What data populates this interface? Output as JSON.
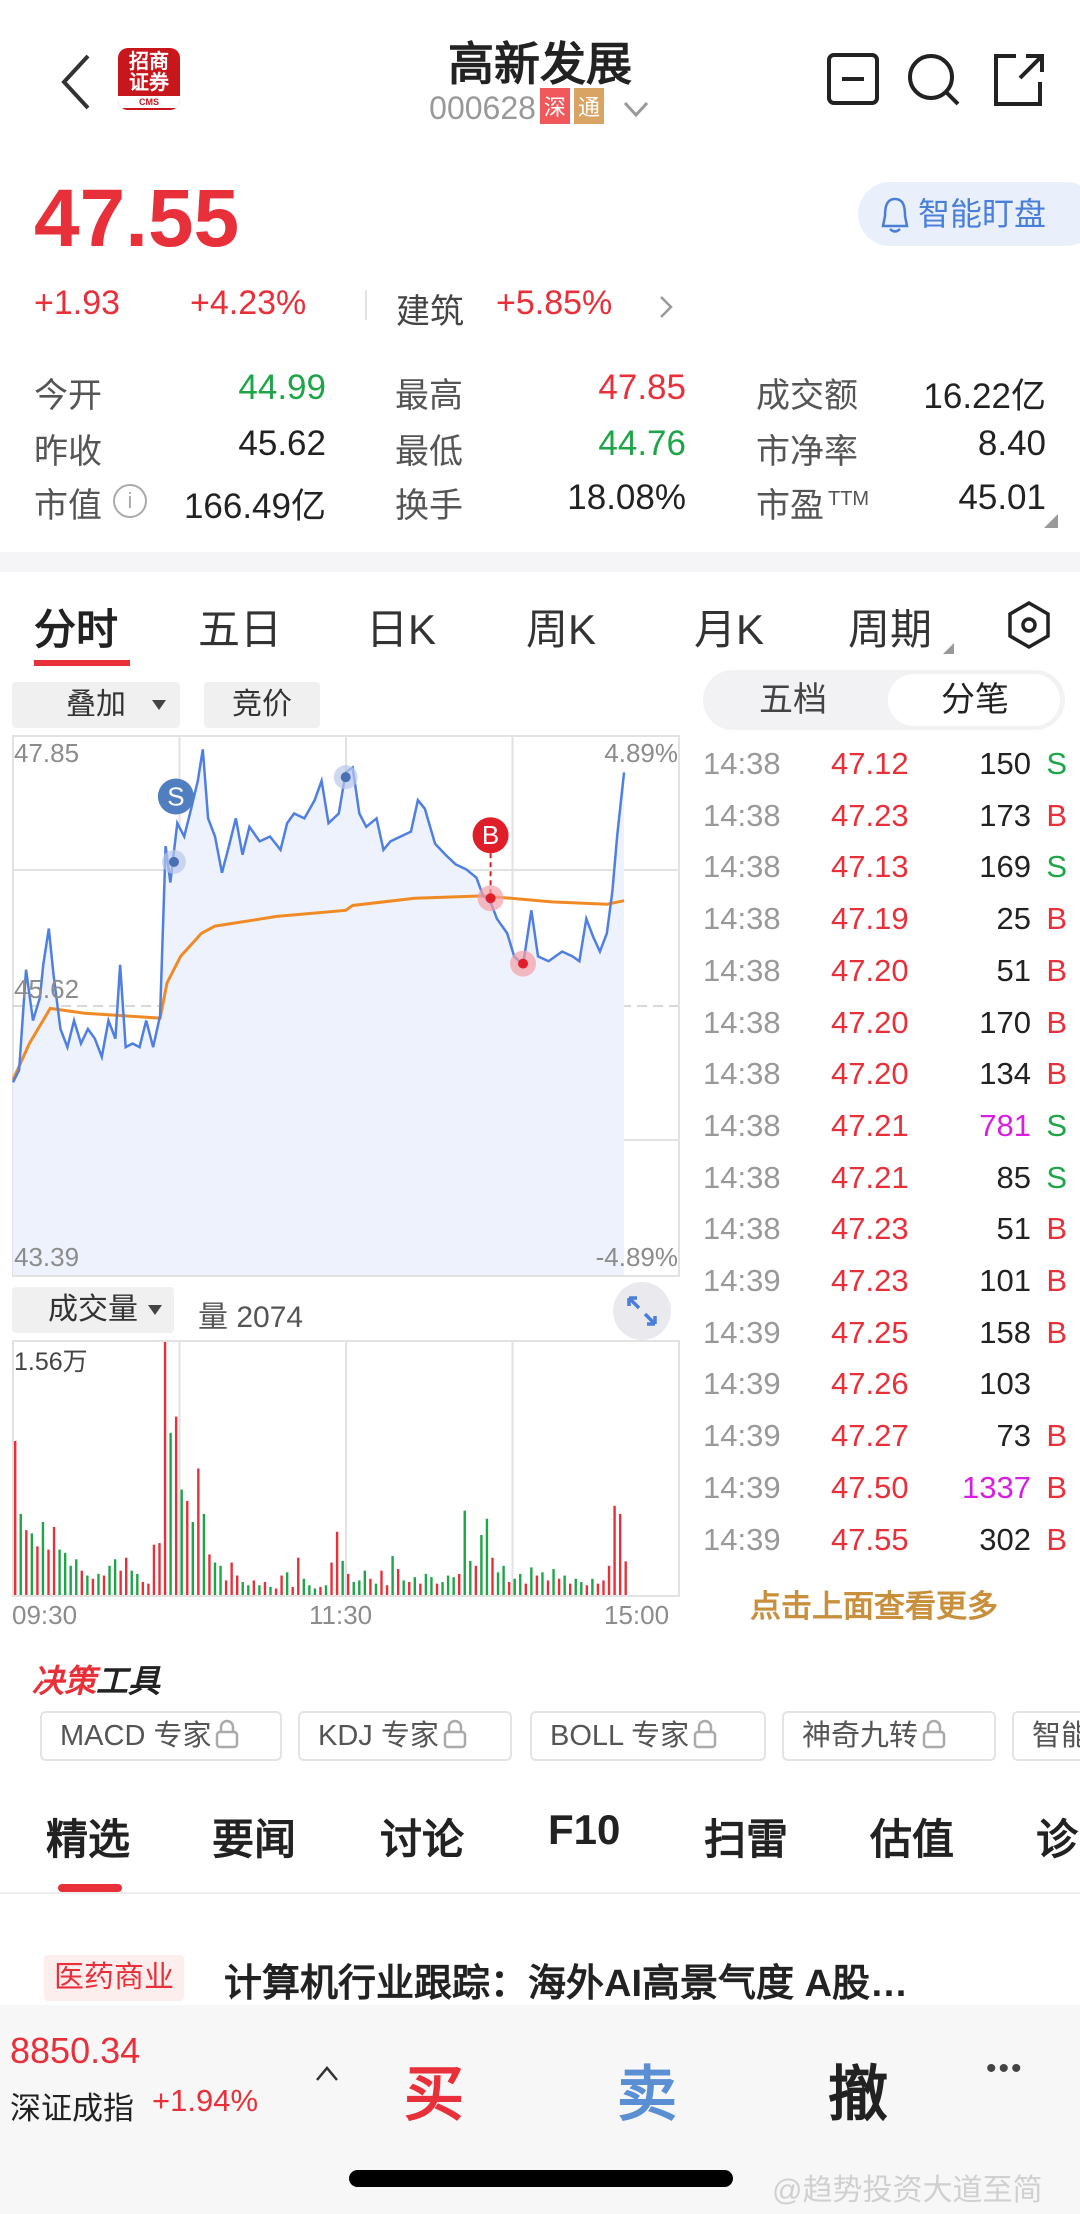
{
  "header": {
    "title": "高新发展",
    "code": "000628",
    "badges": [
      "深",
      "通"
    ],
    "logo_text": "招商证券",
    "logo_sub": "CMS"
  },
  "quote": {
    "price": "47.55",
    "change": "+1.93",
    "change_pct": "+4.23%",
    "sector": "建筑",
    "sector_pct": "+5.85%",
    "smart_watch": "智能盯盘"
  },
  "stats": [
    [
      {
        "label": "今开",
        "value": "44.99",
        "color": "green"
      },
      {
        "label": "最高",
        "value": "47.85",
        "color": "red"
      },
      {
        "label": "成交额",
        "value": "16.22亿",
        "color": "dark"
      }
    ],
    [
      {
        "label": "昨收",
        "value": "45.62",
        "color": "dark"
      },
      {
        "label": "最低",
        "value": "44.76",
        "color": "green"
      },
      {
        "label": "市净率",
        "value": "8.40",
        "color": "dark"
      }
    ],
    [
      {
        "label": "市值",
        "value": "166.49亿",
        "color": "dark"
      },
      {
        "label": "换手",
        "value": "18.08%",
        "color": "dark"
      },
      {
        "label": "市盈",
        "sup": "TTM",
        "value": "45.01",
        "color": "dark"
      }
    ]
  ],
  "chart_tabs": [
    "分时",
    "五日",
    "日K",
    "周K",
    "月K",
    "周期"
  ],
  "overlay": {
    "overlay_label": "叠加",
    "auction_label": "竞价",
    "volume_label": "成交量",
    "volume_value": "量 2074"
  },
  "side_tabs": [
    "五档",
    "分笔"
  ],
  "trades": [
    [
      "14:38",
      "47.12",
      "150",
      "S",
      false
    ],
    [
      "14:38",
      "47.23",
      "173",
      "B",
      false
    ],
    [
      "14:38",
      "47.13",
      "169",
      "S",
      false
    ],
    [
      "14:38",
      "47.19",
      "25",
      "B",
      false
    ],
    [
      "14:38",
      "47.20",
      "51",
      "B",
      false
    ],
    [
      "14:38",
      "47.20",
      "170",
      "B",
      false
    ],
    [
      "14:38",
      "47.20",
      "134",
      "B",
      false
    ],
    [
      "14:38",
      "47.21",
      "781",
      "S",
      true
    ],
    [
      "14:38",
      "47.21",
      "85",
      "S",
      false
    ],
    [
      "14:38",
      "47.23",
      "51",
      "B",
      false
    ],
    [
      "14:39",
      "47.23",
      "101",
      "B",
      false
    ],
    [
      "14:39",
      "47.25",
      "158",
      "B",
      false
    ],
    [
      "14:39",
      "47.26",
      "103",
      "",
      false
    ],
    [
      "14:39",
      "47.27",
      "73",
      "B",
      false
    ],
    [
      "14:39",
      "47.50",
      "1337",
      "B",
      true
    ],
    [
      "14:39",
      "47.55",
      "302",
      "B",
      false
    ]
  ],
  "more_link": "点击上面查看更多",
  "colors": {
    "up": "#e8303a",
    "down": "#1ea548",
    "price_line": "#4f7fe0",
    "avg_line": "#f08a24",
    "big_order": "#d81ee0",
    "accent": "#4a7fd9"
  },
  "chart_data": {
    "type": "line",
    "y_labels": {
      "top": "47.85",
      "mid": "45.62",
      "bottom": "43.39",
      "top_pct": "4.89%",
      "bottom_pct": "-4.89%"
    },
    "ylim": [
      43.39,
      47.85
    ],
    "prev_close": 45.62,
    "x_ticks": [
      "09:30",
      "11:30",
      "15:00"
    ],
    "x_range_minutes": [
      0,
      240
    ],
    "price": [
      [
        0,
        44.99
      ],
      [
        2.2,
        45.09
      ],
      [
        4.7,
        45.92
      ],
      [
        7.2,
        45.5
      ],
      [
        9.7,
        45.69
      ],
      [
        10.9,
        45.96
      ],
      [
        12.9,
        46.26
      ],
      [
        14.6,
        45.88
      ],
      [
        17.1,
        45.43
      ],
      [
        19.6,
        45.28
      ],
      [
        22,
        45.5
      ],
      [
        24.5,
        45.31
      ],
      [
        27,
        45.43
      ],
      [
        29.5,
        45.35
      ],
      [
        32,
        45.2
      ],
      [
        34.4,
        45.5
      ],
      [
        36.9,
        45.35
      ],
      [
        38.6,
        45.96
      ],
      [
        40.6,
        45.28
      ],
      [
        43.1,
        45.31
      ],
      [
        45.6,
        45.28
      ],
      [
        48,
        45.5
      ],
      [
        50.5,
        45.28
      ],
      [
        53,
        45.54
      ],
      [
        55,
        46.94
      ],
      [
        56.7,
        46.64
      ],
      [
        59.2,
        47.13
      ],
      [
        61.7,
        47.02
      ],
      [
        64.2,
        47.25
      ],
      [
        66.6,
        47.48
      ],
      [
        68.4,
        47.74
      ],
      [
        70.3,
        47.17
      ],
      [
        72.8,
        47.02
      ],
      [
        75.3,
        46.72
      ],
      [
        77.8,
        46.94
      ],
      [
        80.3,
        47.17
      ],
      [
        82.7,
        46.87
      ],
      [
        85.2,
        47.1
      ],
      [
        88.9,
        46.98
      ],
      [
        92.6,
        47.02
      ],
      [
        96.4,
        46.91
      ],
      [
        98.8,
        47.13
      ],
      [
        101.3,
        47.21
      ],
      [
        105,
        47.17
      ],
      [
        108.7,
        47.32
      ],
      [
        111.2,
        47.48
      ],
      [
        113.7,
        47.13
      ],
      [
        117.4,
        47.21
      ],
      [
        119.9,
        47.55
      ],
      [
        122.4,
        47.59
      ],
      [
        124.8,
        47.21
      ],
      [
        127.3,
        47.1
      ],
      [
        131,
        47.17
      ],
      [
        133.5,
        46.91
      ],
      [
        136,
        46.98
      ],
      [
        139.7,
        47.02
      ],
      [
        143.4,
        47.06
      ],
      [
        145.9,
        47.32
      ],
      [
        148.4,
        47.25
      ],
      [
        152.1,
        46.96
      ],
      [
        155.8,
        46.87
      ],
      [
        159.5,
        46.79
      ],
      [
        163.2,
        46.75
      ],
      [
        167,
        46.68
      ],
      [
        169.4,
        46.53
      ],
      [
        171.9,
        46.49
      ],
      [
        174.4,
        46.34
      ],
      [
        178.1,
        46.22
      ],
      [
        180.6,
        46.03
      ],
      [
        183.8,
        45.96
      ],
      [
        186.8,
        46.41
      ],
      [
        189.2,
        46.03
      ],
      [
        193,
        45.99
      ],
      [
        197.9,
        46.07
      ],
      [
        201.6,
        46.03
      ],
      [
        204.1,
        45.99
      ],
      [
        206.6,
        46.34
      ],
      [
        209.1,
        46.19
      ],
      [
        211.5,
        46.07
      ],
      [
        214,
        46.22
      ],
      [
        216,
        46.57
      ],
      [
        217.7,
        47.02
      ],
      [
        220.2,
        47.55
      ]
    ],
    "avg": [
      [
        0,
        45.01
      ],
      [
        5.9,
        45.31
      ],
      [
        13.4,
        45.6
      ],
      [
        25.8,
        45.56
      ],
      [
        53,
        45.52
      ],
      [
        55.5,
        45.81
      ],
      [
        60.4,
        46.03
      ],
      [
        67.9,
        46.22
      ],
      [
        72.8,
        46.28
      ],
      [
        95.1,
        46.36
      ],
      [
        119.9,
        46.41
      ],
      [
        122.4,
        46.45
      ],
      [
        144.7,
        46.51
      ],
      [
        169.4,
        46.53
      ],
      [
        194.2,
        46.48
      ],
      [
        214,
        46.46
      ],
      [
        220.2,
        46.49
      ]
    ],
    "markers": [
      {
        "type": "S",
        "t": 58.7,
        "p": 47.35
      },
      {
        "type": "B",
        "t": 172.1,
        "p": 46.51
      },
      {
        "type": "dot-blue",
        "t": 58,
        "p": 46.81
      },
      {
        "type": "dot-blue",
        "t": 119.9,
        "p": 47.51
      },
      {
        "type": "dot-red",
        "t": 172.1,
        "p": 46.51
      },
      {
        "type": "dot-red",
        "t": 183.8,
        "p": 45.97
      }
    ],
    "volume": {
      "max_label": "1.56万",
      "max": 15600,
      "interval_minutes": 2,
      "values": [
        9500,
        5000,
        4000,
        3800,
        3000,
        4500,
        2800,
        4200,
        2800,
        2600,
        1800,
        2200,
        1500,
        1200,
        1000,
        1300,
        1200,
        1800,
        2200,
        1500,
        2300,
        1500,
        1300,
        800,
        700,
        3100,
        3200,
        15600,
        10000,
        11000,
        6500,
        5800,
        4500,
        7800,
        5000,
        2500,
        2000,
        1800,
        900,
        2000,
        1200,
        800,
        600,
        900,
        600,
        800,
        500,
        400,
        1200,
        1400,
        500,
        2300,
        1000,
        600,
        400,
        500,
        600,
        2000,
        3900,
        2100,
        1300,
        800,
        900,
        1500,
        1000,
        700,
        1500,
        600,
        2400,
        1600,
        900,
        800,
        1100,
        700,
        1300,
        1100,
        700,
        800,
        1200,
        1100,
        1300,
        5200,
        2100,
        1800,
        3700,
        4700,
        2300,
        1400,
        1800,
        800,
        1000,
        1300,
        700,
        1700,
        1200,
        1400,
        900,
        1600,
        1000,
        1200,
        700,
        1000,
        800,
        600,
        1000,
        700,
        900,
        1800,
        5500,
        5000,
        2074
      ],
      "up": [
        1,
        0,
        1,
        0,
        1,
        0,
        1,
        1,
        0,
        0,
        0,
        0,
        1,
        0,
        1,
        0,
        1,
        0,
        0,
        1,
        1,
        0,
        0,
        1,
        1,
        1,
        1,
        1,
        0,
        1,
        0,
        1,
        0,
        1,
        0,
        1,
        0,
        0,
        1,
        1,
        1,
        0,
        0,
        1,
        0,
        1,
        0,
        1,
        1,
        0,
        1,
        1,
        0,
        0,
        0,
        1,
        0,
        1,
        1,
        0,
        1,
        0,
        0,
        0,
        1,
        0,
        1,
        1,
        0,
        1,
        0,
        1,
        0,
        1,
        0,
        0,
        1,
        0,
        0,
        0,
        1,
        0,
        0,
        1,
        0,
        0,
        1,
        0,
        0,
        1,
        0,
        0,
        1,
        0,
        1,
        0,
        1,
        0,
        1,
        0,
        1,
        0,
        0,
        1,
        0,
        1,
        1,
        1,
        1,
        1,
        1
      ]
    }
  },
  "tools": {
    "title_red": "决策",
    "title_dark": "工具",
    "items": [
      "MACD 专家",
      "KDJ 专家",
      "BOLL 专家",
      "神奇九转",
      "智能"
    ]
  },
  "news_tabs": [
    "精选",
    "要闻",
    "讨论",
    "F10",
    "扫雷",
    "估值",
    "诊"
  ],
  "news": {
    "tag": "医药商业",
    "title": "计算机行业跟踪：海外AI高景气度 A股…"
  },
  "bottom": {
    "index_value": "8850.34",
    "index_name": "深证成指",
    "index_pct": "+1.94%",
    "buy": "买",
    "sell": "卖",
    "cancel": "撤",
    "more": "•••"
  },
  "watermark": "@趋势投资大道至简"
}
